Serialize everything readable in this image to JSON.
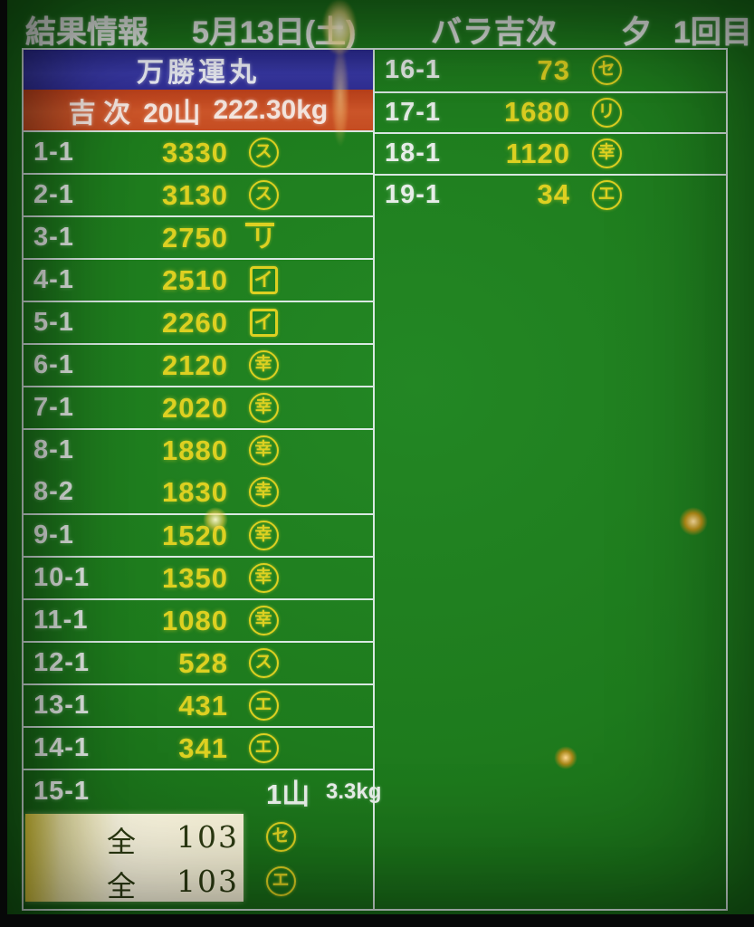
{
  "header": {
    "title": "結果情報",
    "date": "5月13日(土)",
    "item": "バラ吉次",
    "session": "夕",
    "round": "1回目"
  },
  "seller_panel": {
    "boat_name": "万勝運丸",
    "fish_label": "吉 次",
    "lot_count": "20山",
    "total_weight": "222.30kg"
  },
  "left_rows": [
    {
      "lot": "1-1",
      "price": "3330",
      "buyer_mark": "ス",
      "mark_shape": "circle"
    },
    {
      "lot": "2-1",
      "price": "3130",
      "buyer_mark": "ス",
      "mark_shape": "circle"
    },
    {
      "lot": "3-1",
      "price": "2750",
      "buyer_mark": "リ",
      "mark_shape": "bar"
    },
    {
      "lot": "4-1",
      "price": "2510",
      "buyer_mark": "イ",
      "mark_shape": "square"
    },
    {
      "lot": "5-1",
      "price": "2260",
      "buyer_mark": "イ",
      "mark_shape": "square"
    },
    {
      "lot": "6-1",
      "price": "2120",
      "buyer_mark": "幸",
      "mark_shape": "circle"
    },
    {
      "lot": "7-1",
      "price": "2020",
      "buyer_mark": "幸",
      "mark_shape": "circle"
    },
    {
      "lot": "8-1",
      "price": "1880",
      "buyer_mark": "幸",
      "mark_shape": "circle"
    },
    {
      "lot": "8-2",
      "price": "1830",
      "buyer_mark": "幸",
      "mark_shape": "circle"
    },
    {
      "lot": "9-1",
      "price": "1520",
      "buyer_mark": "幸",
      "mark_shape": "circle"
    },
    {
      "lot": "10-1",
      "price": "1350",
      "buyer_mark": "幸",
      "mark_shape": "circle"
    },
    {
      "lot": "11-1",
      "price": "1080",
      "buyer_mark": "幸",
      "mark_shape": "circle"
    },
    {
      "lot": "12-1",
      "price": "528",
      "buyer_mark": "ス",
      "mark_shape": "circle"
    },
    {
      "lot": "13-1",
      "price": "431",
      "buyer_mark": "エ",
      "mark_shape": "circle"
    },
    {
      "lot": "14-1",
      "price": "341",
      "buyer_mark": "エ",
      "mark_shape": "circle"
    }
  ],
  "last_lot": {
    "lot": "15-1",
    "pile": "1山",
    "weight": "3.3kg"
  },
  "totals": [
    {
      "label": "全",
      "value": "103",
      "buyer_mark": "セ",
      "mark_shape": "circle"
    },
    {
      "label": "全",
      "value": "103",
      "buyer_mark": "エ",
      "mark_shape": "circle"
    }
  ],
  "right_rows": [
    {
      "lot": "16-1",
      "price": "73",
      "buyer_mark": "セ",
      "mark_shape": "circle"
    },
    {
      "lot": "17-1",
      "price": "1680",
      "buyer_mark": "リ",
      "mark_shape": "circle"
    },
    {
      "lot": "18-1",
      "price": "1120",
      "buyer_mark": "幸",
      "mark_shape": "circle"
    },
    {
      "lot": "19-1",
      "price": "34",
      "buyer_mark": "エ",
      "mark_shape": "circle"
    }
  ],
  "colors": {
    "background-green": "#1e7b1d",
    "accent-yellow": "#ddd021",
    "header-blue": "#34349e",
    "header-red": "#cb4b22",
    "totals-cream": "#f7f2d7",
    "line-white": "#d9e8e2",
    "label-white": "#e7ede8"
  }
}
